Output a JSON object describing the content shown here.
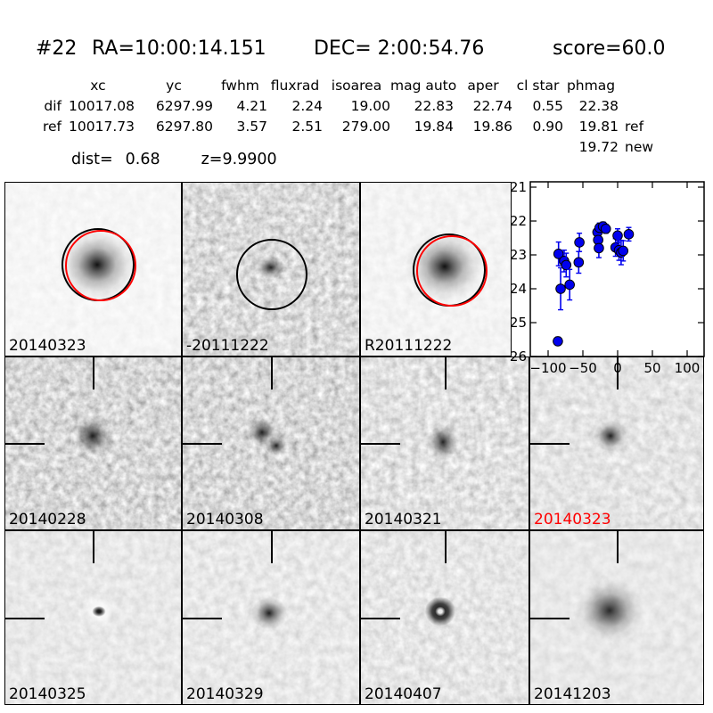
{
  "header": {
    "id": "#22",
    "ra": "RA=10:00:14.151",
    "dec": "DEC= 2:00:54.76",
    "score": "score=60.0"
  },
  "table": {
    "columns": [
      "xc",
      "yc",
      "fwhm",
      "fluxrad",
      "isoarea",
      "mag auto",
      "aper",
      "cl star",
      "phmag"
    ],
    "rows": [
      {
        "label": "dif",
        "xc": "10017.08",
        "yc": "6297.99",
        "fwhm": "4.21",
        "fluxrad": "2.24",
        "isoarea": "19.00",
        "mag_auto": "22.83",
        "aper": "22.74",
        "cl_star": "0.55",
        "phmag": "22.38",
        "phmag_suffix": ""
      },
      {
        "label": "ref",
        "xc": "10017.73",
        "yc": "6297.80",
        "fwhm": "3.57",
        "fluxrad": "2.51",
        "isoarea": "279.00",
        "mag_auto": "19.84",
        "aper": "19.86",
        "cl_star": "0.90",
        "phmag": "19.81",
        "phmag_suffix": "ref"
      }
    ],
    "extra_phmag": {
      "value": "19.72",
      "suffix": "new"
    },
    "dist_label": "dist=",
    "dist_value": "0.68",
    "z_value": "z=9.9900"
  },
  "panels": [
    {
      "label": "20140323",
      "label_color": "#000000",
      "kind": "new-image-with-apertures"
    },
    {
      "label": "-20111222",
      "label_color": "#000000",
      "kind": "ref-subtraction-with-aperture"
    },
    {
      "label": "R20111222",
      "label_color": "#000000",
      "kind": "ref-image-with-apertures"
    },
    {
      "label": "20140228",
      "label_color": "#000000",
      "kind": "difference-epoch"
    },
    {
      "label": "20140308",
      "label_color": "#000000",
      "kind": "difference-epoch"
    },
    {
      "label": "20140321",
      "label_color": "#000000",
      "kind": "difference-epoch"
    },
    {
      "label": "20140323",
      "label_color": "#ff0000",
      "kind": "difference-epoch-current"
    },
    {
      "label": "20140325",
      "label_color": "#000000",
      "kind": "difference-epoch"
    },
    {
      "label": "20140329",
      "label_color": "#000000",
      "kind": "difference-epoch"
    },
    {
      "label": "20140407",
      "label_color": "#000000",
      "kind": "difference-epoch"
    },
    {
      "label": "20141203",
      "label_color": "#000000",
      "kind": "difference-epoch"
    }
  ],
  "colors": {
    "marker_blue": "#0000ee",
    "aperture_black": "#000000",
    "aperture_red": "#ff0000",
    "highlight_label_red": "#ff0000"
  },
  "chart_data": {
    "type": "scatter",
    "title": "",
    "xlabel": "",
    "ylabel": "",
    "xlim": [
      -122,
      125
    ],
    "ylim": [
      26,
      20.85
    ],
    "y_axis_inverted": true,
    "grid": false,
    "legend": null,
    "xticks": [
      -100,
      -50,
      0,
      50,
      100
    ],
    "xtick_labels": [
      "−100",
      "−50",
      "0",
      "50",
      "100"
    ],
    "yticks": [
      21,
      22,
      23,
      24,
      25,
      26
    ],
    "marker_color": "#0000ee",
    "series": [
      {
        "name": "lightcurve-mag-vs-epoch",
        "points": [
          {
            "x": -86,
            "y": 25.55,
            "err": 0.12
          },
          {
            "x": -85,
            "y": 22.97,
            "err": 0.35
          },
          {
            "x": -82,
            "y": 24.0,
            "err": 0.62
          },
          {
            "x": -77,
            "y": 23.18,
            "err": 0.32
          },
          {
            "x": -74,
            "y": 23.3,
            "err": 0.35
          },
          {
            "x": -69,
            "y": 23.88,
            "err": 0.45
          },
          {
            "x": -56,
            "y": 23.22,
            "err": 0.32
          },
          {
            "x": -55,
            "y": 22.63,
            "err": 0.27
          },
          {
            "x": -29,
            "y": 22.33,
            "err": 0.16
          },
          {
            "x": -28,
            "y": 22.56,
            "err": 0.2
          },
          {
            "x": -27,
            "y": 22.8,
            "err": 0.28
          },
          {
            "x": -26,
            "y": 22.2,
            "err": 0.14
          },
          {
            "x": -21,
            "y": 22.16,
            "err": 0.13
          },
          {
            "x": -17,
            "y": 22.23,
            "err": 0.13
          },
          {
            "x": -3,
            "y": 22.78,
            "err": 0.26
          },
          {
            "x": 0,
            "y": 22.43,
            "err": 0.2
          },
          {
            "x": 2,
            "y": 22.86,
            "err": 0.3
          },
          {
            "x": 5,
            "y": 22.93,
            "err": 0.36
          },
          {
            "x": 8,
            "y": 22.88,
            "err": 0.3
          },
          {
            "x": 16,
            "y": 22.39,
            "err": 0.2
          }
        ]
      }
    ]
  }
}
